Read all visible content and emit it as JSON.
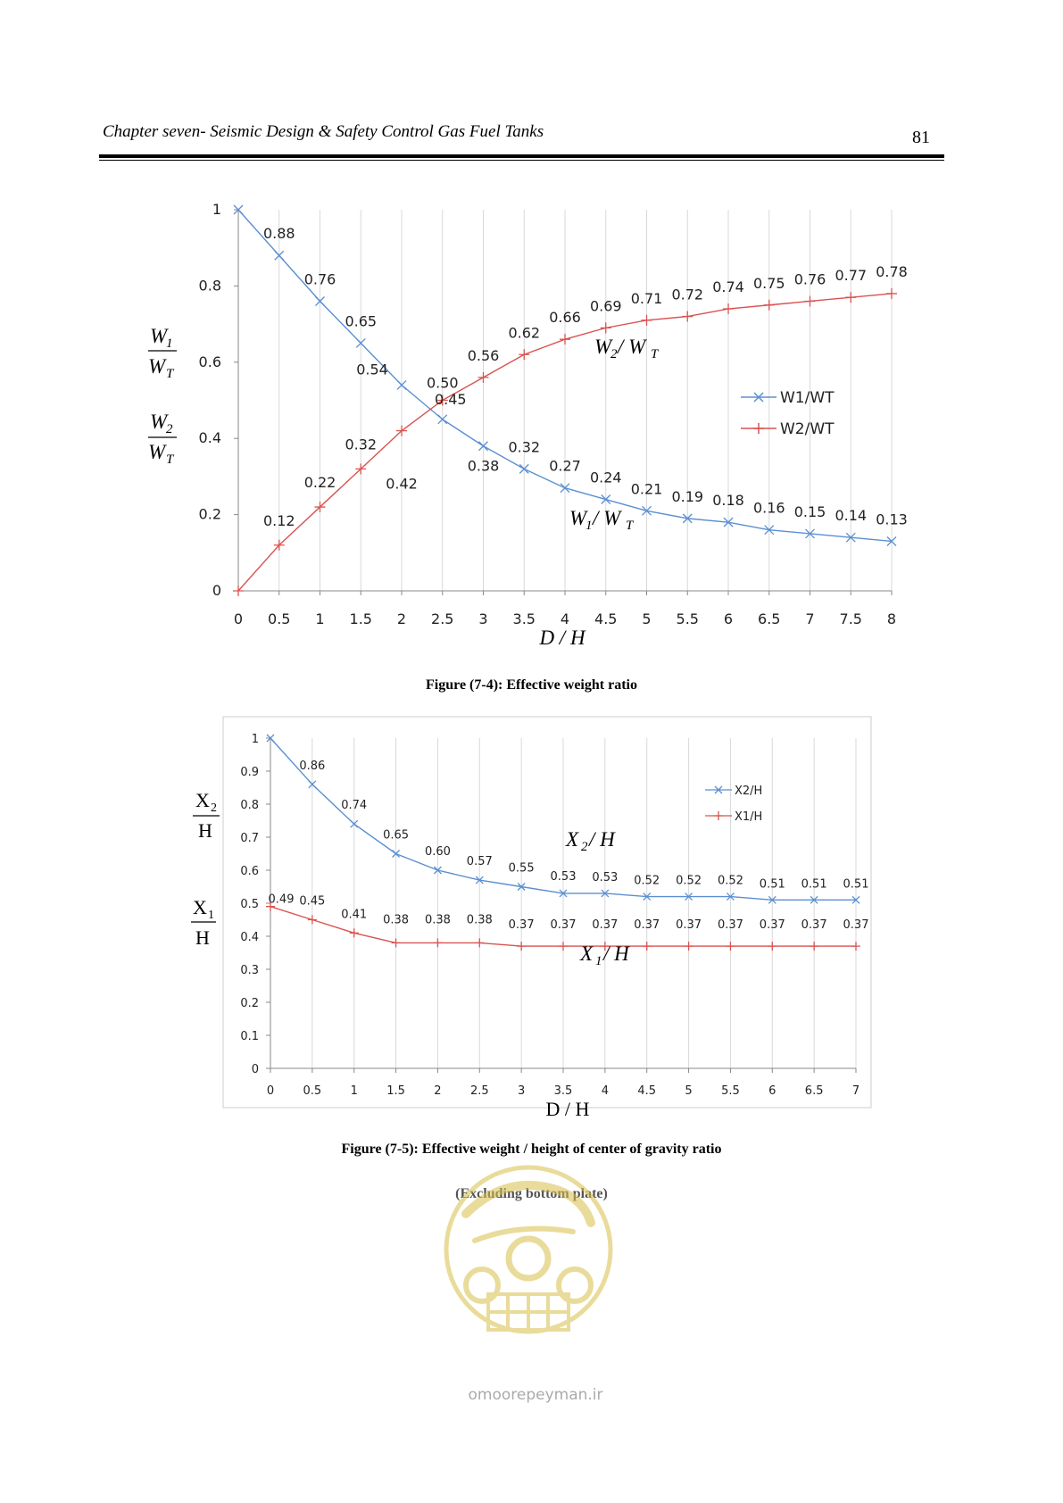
{
  "header": {
    "title": "Chapter seven- Seismic Design & Safety Control Gas Fuel Tanks",
    "page_number": "81"
  },
  "figure1": {
    "caption": "Figure (7-4): Effective weight ratio",
    "y_axis_label": {
      "w1_num": "W",
      "w1_num_sub": "1",
      "w1_den": "W",
      "w1_den_sub": "T",
      "w2_num": "W",
      "w2_num_sub": "2",
      "w2_den": "W",
      "w2_den_sub": "T"
    },
    "x_axis_label": "D / H",
    "curve_labels": {
      "w2": {
        "main": "W",
        "sub1": "2",
        "slash": " / W",
        "sub2": "T"
      },
      "w1": {
        "main": "W",
        "sub1": "1",
        "slash": " / W",
        "sub2": "T"
      }
    },
    "colors": {
      "series1": "#5b8fd1",
      "series2": "#d9534f",
      "grid": "#d9d9d9",
      "axis": "#888888"
    }
  },
  "figure2": {
    "caption": "Figure (7-5): Effective weight / height of center of gravity ratio",
    "subcaption": "(Excluding bottom plate)",
    "y_axis_label": {
      "x2_num": "X",
      "x2_num_sub": "2",
      "x2_den": "H",
      "x1_num": "X",
      "x1_num_sub": "1",
      "x1_den": "H"
    },
    "x_axis_label": "D / H",
    "curve_labels": {
      "x2": {
        "main": "X",
        "sub": "2",
        "rest": " / H"
      },
      "x1": {
        "main": "X",
        "sub": "1",
        "rest": " / H"
      }
    },
    "colors": {
      "series1": "#5b8fd1",
      "series2": "#d9534f",
      "grid": "#d9d9d9",
      "axis": "#888888",
      "frame": "#cccccc"
    }
  },
  "watermark": {
    "site": "omoorepeyman.ir",
    "icon": "seal-logo-icon"
  },
  "chart_data": [
    {
      "type": "line",
      "x": [
        0,
        0.5,
        1,
        1.5,
        2,
        2.5,
        3,
        3.5,
        4,
        4.5,
        5,
        5.5,
        6,
        6.5,
        7,
        7.5,
        8
      ],
      "x_tick_labels": [
        "0",
        "0.5",
        "1",
        "1.5",
        "2",
        "2.5",
        "3",
        "3.5",
        "4",
        "4.5",
        "5",
        "5.5",
        "6",
        "6.5",
        "7",
        "7.5",
        "8"
      ],
      "y_tick_labels": [
        "0",
        "0.2",
        "0.4",
        "0.6",
        "0.8",
        "1"
      ],
      "ylim": [
        0,
        1
      ],
      "xlim": [
        0,
        8
      ],
      "grid": "vertical",
      "legend_position": "right",
      "series": [
        {
          "name": "W1/WT",
          "marker": "x",
          "values": [
            1,
            0.88,
            0.76,
            0.65,
            0.54,
            0.45,
            0.38,
            0.32,
            0.27,
            0.24,
            0.21,
            0.19,
            0.18,
            0.16,
            0.15,
            0.14,
            0.13
          ],
          "labels": [
            "",
            "0.88",
            "0.76",
            "0.65",
            "0.54",
            "0.45",
            "0.38",
            "0.32",
            "0.27",
            "0.24",
            "0.21",
            "0.19",
            "0.18",
            "0.16",
            "0.15",
            "0.14",
            "0.13"
          ]
        },
        {
          "name": "W2/WT",
          "marker": "+",
          "values": [
            0,
            0.12,
            0.22,
            0.32,
            0.42,
            0.5,
            0.56,
            0.62,
            0.66,
            0.69,
            0.71,
            0.72,
            0.74,
            0.75,
            0.76,
            0.77,
            0.78
          ],
          "labels": [
            "",
            "0.12",
            "0.22",
            "0.32",
            "0.42",
            "0.50",
            "0.56",
            "0.62",
            "0.66",
            "0.69",
            "0.71",
            "0.72",
            "0.74",
            "0.75",
            "0.76",
            "0.77",
            "0.78"
          ]
        }
      ]
    },
    {
      "type": "line",
      "x": [
        0,
        0.5,
        1,
        1.5,
        2,
        2.5,
        3,
        3.5,
        4,
        4.5,
        5,
        5.5,
        6,
        6.5,
        7
      ],
      "x_tick_labels": [
        "0",
        "0.5",
        "1",
        "1.5",
        "2",
        "2.5",
        "3",
        "3.5",
        "4",
        "4.5",
        "5",
        "5.5",
        "6",
        "6.5",
        "7"
      ],
      "y_tick_labels": [
        "0",
        "0.1",
        "0.2",
        "0.3",
        "0.4",
        "0.5",
        "0.6",
        "0.7",
        "0.8",
        "0.9",
        "1"
      ],
      "ylim": [
        0,
        1
      ],
      "xlim": [
        0,
        7
      ],
      "grid": "vertical",
      "legend_position": "top-right",
      "series": [
        {
          "name": "X2/H",
          "marker": "x",
          "values": [
            1,
            0.86,
            0.74,
            0.65,
            0.6,
            0.57,
            0.55,
            0.53,
            0.53,
            0.52,
            0.52,
            0.52,
            0.51,
            0.51,
            0.51
          ],
          "labels": [
            "",
            "0.86",
            "0.74",
            "0.65",
            "0.60",
            "0.57",
            "0.55",
            "0.53",
            "0.53",
            "0.52",
            "0.52",
            "0.52",
            "0.51",
            "0.51",
            "0.51"
          ]
        },
        {
          "name": "X1/H",
          "marker": "+",
          "values": [
            0.49,
            0.45,
            0.41,
            0.38,
            0.38,
            0.38,
            0.37,
            0.37,
            0.37,
            0.37,
            0.37,
            0.37,
            0.37,
            0.37,
            0.37
          ],
          "labels": [
            "0.49",
            "0.45",
            "0.41",
            "0.38",
            "0.38",
            "0.38",
            "0.37",
            "0.37",
            "0.37",
            "0.37",
            "0.37",
            "0.37",
            "0.37",
            "0.37",
            "0.37"
          ]
        }
      ]
    }
  ]
}
